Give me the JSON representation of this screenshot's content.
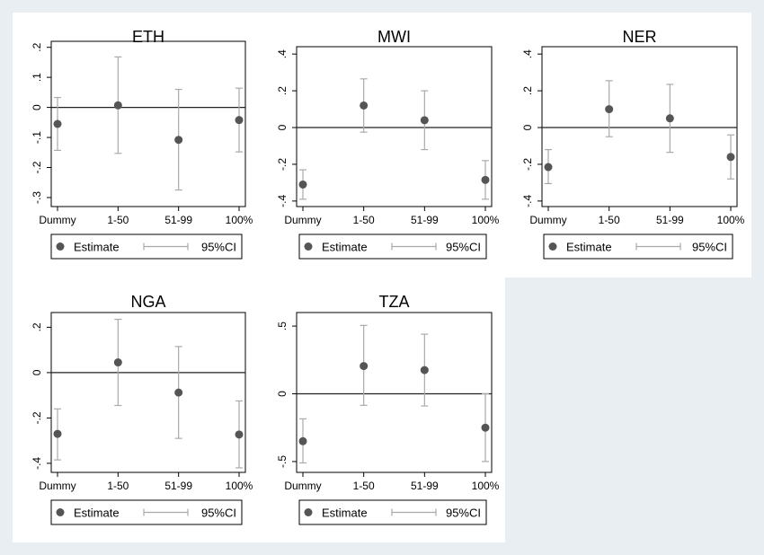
{
  "chart_data": [
    {
      "type": "scatter",
      "title": "ETH",
      "categories": [
        "Dummy",
        "1-50",
        "51-99",
        "100%"
      ],
      "yticks": [
        ".2",
        ".1",
        "0",
        "-.1",
        "-.2",
        "-.3"
      ],
      "ytick_values": [
        0.2,
        0.1,
        0,
        -0.1,
        -0.2,
        -0.3
      ],
      "ylim": [
        -0.33,
        0.22
      ],
      "estimate": [
        -0.055,
        0.007,
        -0.108,
        -0.042
      ],
      "ci_low": [
        -0.143,
        -0.153,
        -0.275,
        -0.148
      ],
      "ci_high": [
        0.033,
        0.168,
        0.06,
        0.064
      ],
      "legend": {
        "estimate": "Estimate",
        "ci": "95%CI"
      }
    },
    {
      "type": "scatter",
      "title": "MWI",
      "categories": [
        "Dummy",
        "1-50",
        "51-99",
        "100%"
      ],
      "yticks": [
        ".4",
        ".2",
        "0",
        "-.2",
        "-.4"
      ],
      "ytick_values": [
        0.4,
        0.2,
        0,
        -0.2,
        -0.4
      ],
      "ylim": [
        -0.43,
        0.44
      ],
      "estimate": [
        -0.31,
        0.12,
        0.04,
        -0.285
      ],
      "ci_low": [
        -0.39,
        -0.025,
        -0.12,
        -0.39
      ],
      "ci_high": [
        -0.23,
        0.265,
        0.2,
        -0.18
      ],
      "legend": {
        "estimate": "Estimate",
        "ci": "95%CI"
      }
    },
    {
      "type": "scatter",
      "title": "NER",
      "categories": [
        "Dummy",
        "1-50",
        "51-99",
        "100%"
      ],
      "yticks": [
        ".4",
        ".2",
        "0",
        "-.2",
        "-.4"
      ],
      "ytick_values": [
        0.4,
        0.2,
        0,
        -0.2,
        -0.4
      ],
      "ylim": [
        -0.43,
        0.44
      ],
      "estimate": [
        -0.215,
        0.1,
        0.05,
        -0.16
      ],
      "ci_low": [
        -0.305,
        -0.05,
        -0.135,
        -0.28
      ],
      "ci_high": [
        -0.12,
        0.255,
        0.235,
        -0.04
      ],
      "legend": {
        "estimate": "Estimate",
        "ci": "95%CI"
      }
    },
    {
      "type": "scatter",
      "title": "NGA",
      "categories": [
        "Dummy",
        "1-50",
        "51-99",
        "100%"
      ],
      "yticks": [
        ".2",
        "0",
        "-.2",
        "-.4"
      ],
      "ytick_values": [
        0.2,
        0,
        -0.2,
        -0.4
      ],
      "ylim": [
        -0.44,
        0.265
      ],
      "estimate": [
        -0.27,
        0.045,
        -0.088,
        -0.273
      ],
      "ci_low": [
        -0.385,
        -0.145,
        -0.29,
        -0.42
      ],
      "ci_high": [
        -0.16,
        0.235,
        0.115,
        -0.125
      ],
      "legend": {
        "estimate": "Estimate",
        "ci": "95%CI"
      }
    },
    {
      "type": "scatter",
      "title": "TZA",
      "categories": [
        "Dummy",
        "1-50",
        "51-99",
        "100%"
      ],
      "yticks": [
        ".5",
        "0",
        "-.5"
      ],
      "ytick_values": [
        0.5,
        0,
        -0.5
      ],
      "ylim": [
        -0.58,
        0.6
      ],
      "estimate": [
        -0.35,
        0.205,
        0.175,
        -0.25
      ],
      "ci_low": [
        -0.51,
        -0.085,
        -0.09,
        -0.5
      ],
      "ci_high": [
        -0.185,
        0.505,
        0.44,
        0.0
      ],
      "legend": {
        "estimate": "Estimate",
        "ci": "95%CI"
      }
    }
  ]
}
